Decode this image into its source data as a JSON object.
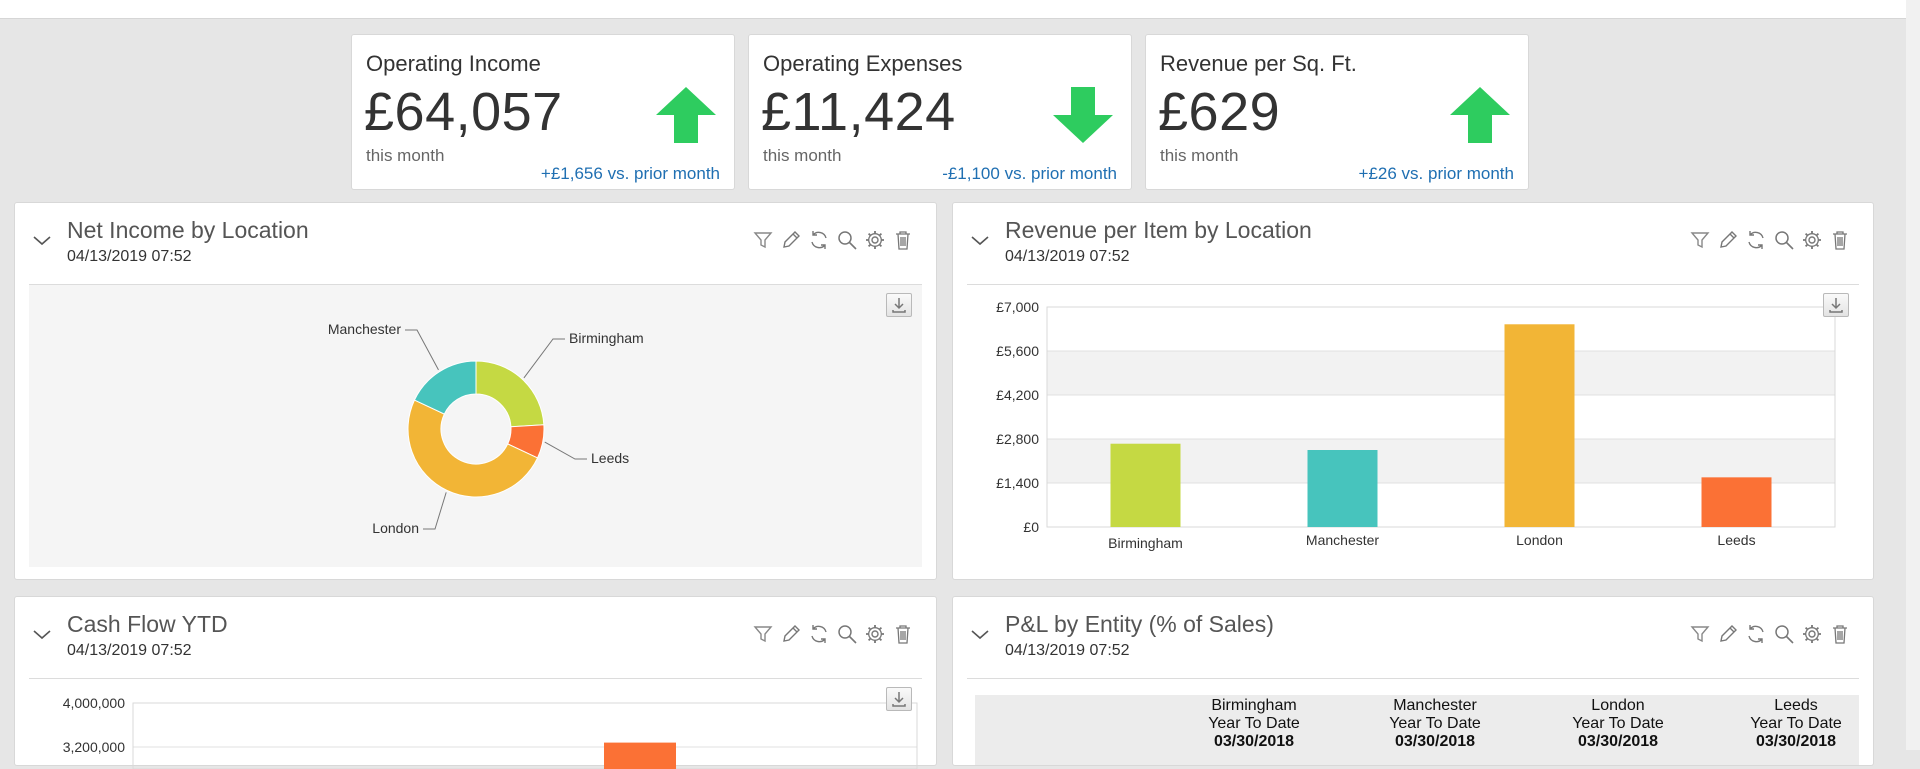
{
  "kpis": [
    {
      "title": "Operating Income",
      "value": "£64,057",
      "sub": "this month",
      "delta": "+£1,656 vs. prior month",
      "trend": "up",
      "arrow_icon": "arrow-up-icon"
    },
    {
      "title": "Operating Expenses",
      "value": "£11,424",
      "sub": "this month",
      "delta": "-£1,100 vs. prior month",
      "trend": "down",
      "arrow_icon": "arrow-down-icon"
    },
    {
      "title": "Revenue per Sq. Ft.",
      "value": "£629",
      "sub": "this month",
      "delta": "+£26 vs. prior month",
      "trend": "up",
      "arrow_icon": "arrow-up-icon"
    }
  ],
  "colors": {
    "up": "#2ecc5f",
    "down": "#2ecc5f",
    "link": "#1f6fb2",
    "birmingham": "#c5d943",
    "manchester": "#47c4bd",
    "london": "#f2b536",
    "leeds": "#fb7135"
  },
  "panels": {
    "net_income": {
      "title": "Net Income by Location",
      "date": "04/13/2019 07:52"
    },
    "revenue_item": {
      "title": "Revenue per Item by Location",
      "date": "04/13/2019 07:52"
    },
    "cash_flow": {
      "title": "Cash Flow YTD",
      "date": "04/13/2019 07:52"
    },
    "pl_entity": {
      "title": "P&L by Entity (% of Sales)",
      "date": "04/13/2019 07:52",
      "columns": [
        {
          "entity": "Birmingham",
          "period": "Year To Date",
          "as_of": "03/30/2018"
        },
        {
          "entity": "Manchester",
          "period": "Year To Date",
          "as_of": "03/30/2018"
        },
        {
          "entity": "London",
          "period": "Year To Date",
          "as_of": "03/30/2018"
        },
        {
          "entity": "Leeds",
          "period": "Year To Date",
          "as_of": "03/30/2018"
        }
      ]
    }
  },
  "toolbar_icons": [
    "filter-icon",
    "edit-icon",
    "refresh-icon",
    "search-icon",
    "gear-icon",
    "trash-icon"
  ],
  "chart_data": [
    {
      "type": "pie",
      "title": "Net Income by Location",
      "donut": true,
      "slices": [
        {
          "label": "Birmingham",
          "value": 24,
          "color": "#c5d943"
        },
        {
          "label": "Leeds",
          "value": 8,
          "color": "#fb7135"
        },
        {
          "label": "London",
          "value": 50,
          "color": "#f2b536"
        },
        {
          "label": "Manchester",
          "value": 18,
          "color": "#47c4bd"
        }
      ]
    },
    {
      "type": "bar",
      "title": "Revenue per Item by Location",
      "categories": [
        "Birmingham",
        "Manchester",
        "London",
        "Leeds"
      ],
      "values": [
        2650,
        2450,
        6450,
        1580
      ],
      "colors": [
        "#c5d943",
        "#47c4bd",
        "#f2b536",
        "#fb7135"
      ],
      "yticks": [
        "£0",
        "£1,400",
        "£2,800",
        "£4,200",
        "£5,600",
        "£7,000"
      ],
      "ylim": [
        0,
        7000
      ],
      "grid": true
    },
    {
      "type": "bar",
      "title": "Cash Flow YTD",
      "yticks": [
        "4,000,000",
        "3,200,000"
      ],
      "ylim": [
        0,
        4000000
      ]
    }
  ]
}
